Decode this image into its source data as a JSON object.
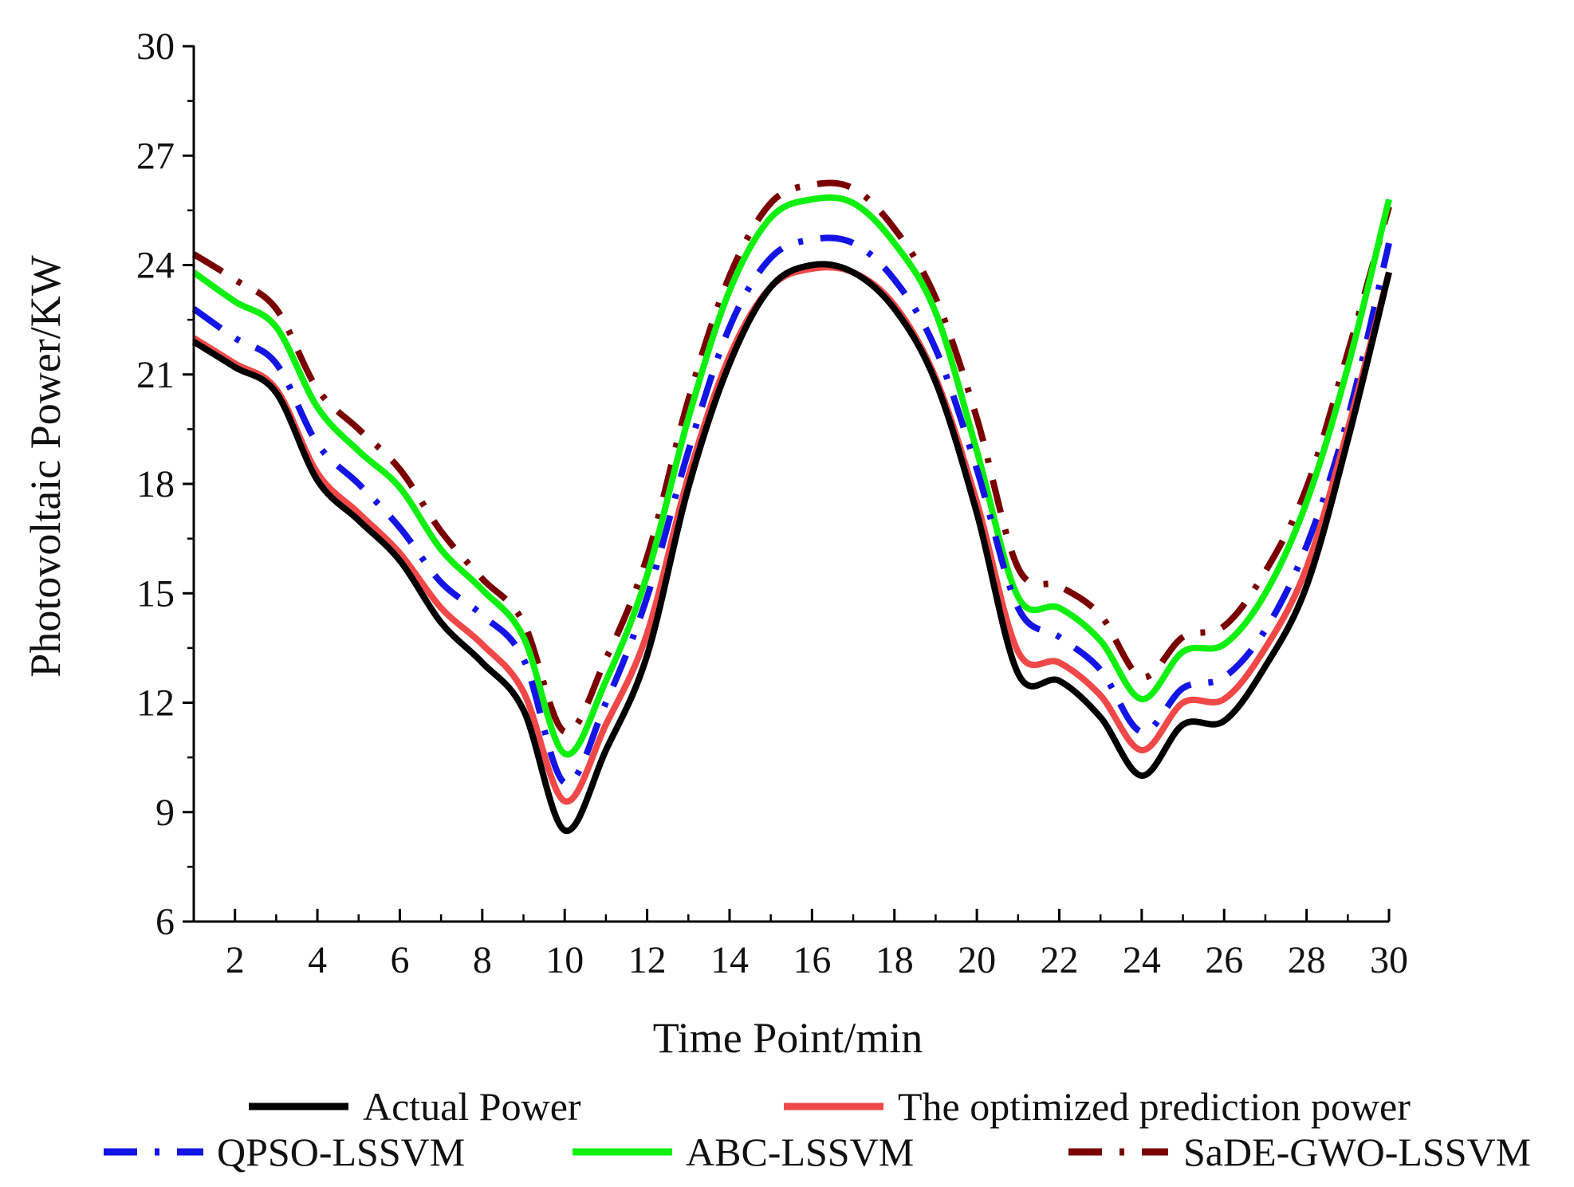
{
  "chart_data": {
    "type": "line",
    "title": "",
    "xlabel": "Time Point/min",
    "ylabel": "Photovoltaic Power/KW",
    "x": [
      1,
      2,
      3,
      4,
      5,
      6,
      7,
      8,
      9,
      10,
      11,
      12,
      13,
      14,
      15,
      16,
      17,
      18,
      19,
      20,
      21,
      22,
      23,
      24,
      25,
      26,
      27,
      28,
      29,
      30
    ],
    "xlim": [
      1,
      30
    ],
    "ylim": [
      6,
      30
    ],
    "xticks": [
      2,
      4,
      6,
      8,
      10,
      12,
      14,
      16,
      18,
      20,
      22,
      24,
      26,
      28,
      30
    ],
    "yticks": [
      6,
      9,
      12,
      15,
      18,
      21,
      24,
      27,
      30
    ],
    "grid": false,
    "legend_position": "bottom",
    "series": [
      {
        "name": "Actual Power",
        "color": "#000000",
        "style": "solid",
        "values": [
          21.9,
          21.2,
          20.5,
          18.1,
          17.0,
          15.9,
          14.2,
          13.1,
          11.8,
          8.5,
          10.7,
          13.3,
          17.9,
          21.3,
          23.4,
          24.0,
          23.8,
          22.8,
          20.8,
          17.2,
          12.8,
          12.6,
          11.6,
          10.0,
          11.4,
          11.5,
          13.0,
          15.2,
          19.2,
          23.8
        ]
      },
      {
        "name": "The optimized prediction power",
        "color": "#f04848",
        "style": "solid",
        "values": [
          22.0,
          21.3,
          20.6,
          18.3,
          17.2,
          16.1,
          14.6,
          13.6,
          12.3,
          9.3,
          11.4,
          13.9,
          18.2,
          21.5,
          23.4,
          23.9,
          23.8,
          22.9,
          20.9,
          17.5,
          13.4,
          13.1,
          12.2,
          10.7,
          12.0,
          12.1,
          13.5,
          15.7,
          19.5,
          23.8
        ]
      },
      {
        "name": "QPSO-LSSVM",
        "color": "#1414e6",
        "style": "dashdot",
        "values": [
          22.8,
          22.0,
          21.3,
          19.1,
          18.0,
          16.8,
          15.3,
          14.4,
          13.2,
          9.8,
          12.0,
          14.9,
          18.9,
          22.3,
          24.2,
          24.7,
          24.6,
          23.6,
          21.7,
          18.4,
          14.6,
          13.8,
          12.9,
          11.2,
          12.4,
          12.7,
          14.0,
          16.3,
          19.8,
          24.6
        ]
      },
      {
        "name": "ABC-LSSVM",
        "color": "#10f010",
        "style": "solid",
        "values": [
          23.8,
          23.0,
          22.3,
          20.1,
          18.9,
          17.9,
          16.2,
          15.1,
          13.8,
          10.6,
          12.6,
          15.5,
          19.8,
          23.3,
          25.3,
          25.8,
          25.7,
          24.6,
          22.7,
          18.9,
          14.9,
          14.6,
          13.7,
          12.1,
          13.4,
          13.6,
          15.0,
          17.5,
          21.2,
          25.8
        ]
      },
      {
        "name": "SaDE-GWO-LSSVM",
        "color": "#7a0000",
        "style": "dashdot",
        "values": [
          24.3,
          23.6,
          22.8,
          20.6,
          19.5,
          18.4,
          16.7,
          15.4,
          14.2,
          11.2,
          13.2,
          16.0,
          20.3,
          23.7,
          25.7,
          26.2,
          26.1,
          25.0,
          23.1,
          19.8,
          15.7,
          15.2,
          14.4,
          12.7,
          13.8,
          14.1,
          15.6,
          17.9,
          21.6,
          25.6
        ]
      }
    ]
  }
}
